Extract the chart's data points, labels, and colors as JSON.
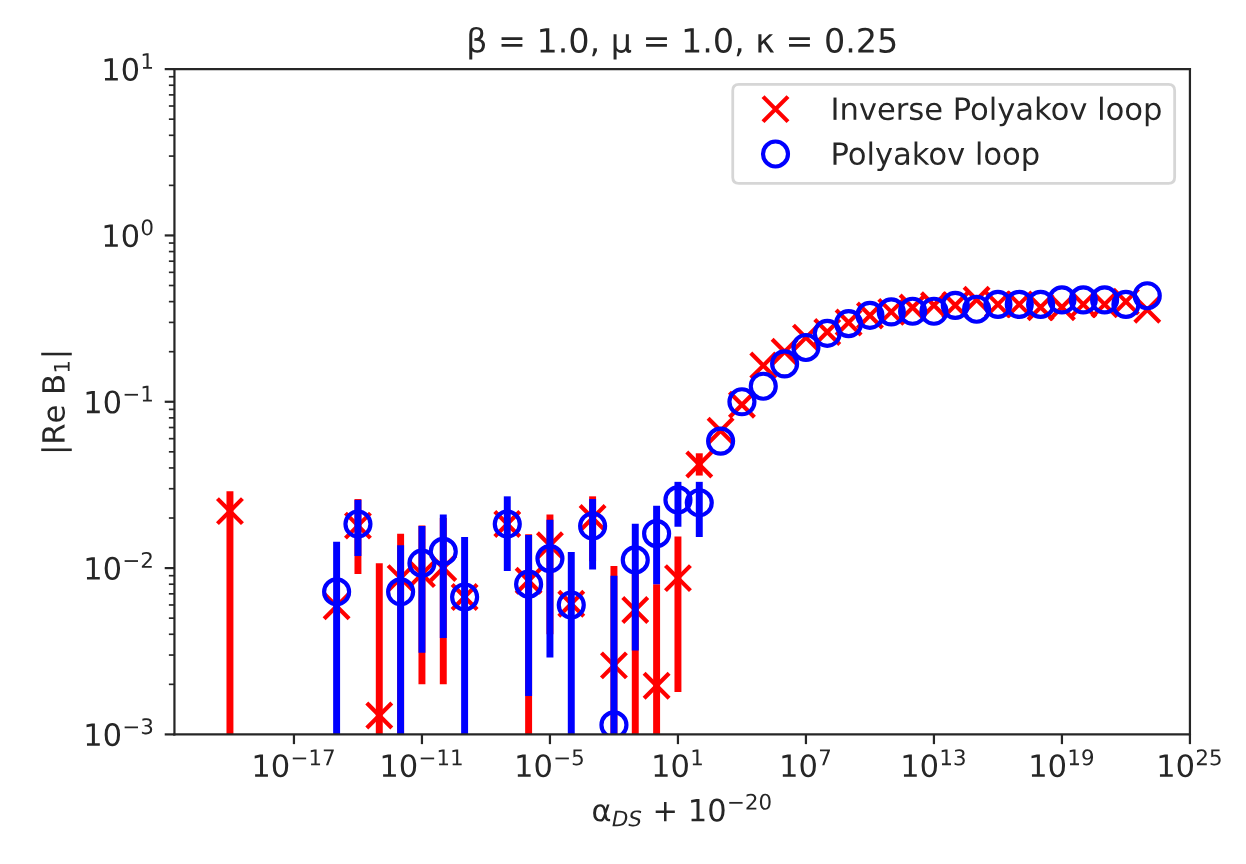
{
  "chart_data": {
    "type": "scatter",
    "title": "β = 1.0, μ = 1.0, κ = 0.25",
    "xlabel": "α$_{DS}$ + 10$^{−20}$",
    "ylabel": "|Re B$_{1}$|",
    "x": [
      1e-20,
      1e-15,
      1e-14,
      1e-13,
      1e-12,
      1e-11,
      1e-10,
      1e-09,
      1e-08,
      1e-07,
      1e-06,
      1e-05,
      0.0001,
      0.001,
      0.01,
      0.1,
      1,
      10,
      100,
      1000.0,
      10000.0,
      100000.0,
      1000000.0,
      10000000.0,
      100000000.0,
      1000000000.0,
      10000000000.0,
      100000000000.0,
      1000000000000.0,
      10000000000000.0,
      100000000000000.0,
      1000000000000000.0,
      1e+16,
      1e+17,
      1e+18,
      1e+19,
      1e+20,
      1e+21,
      1e+22,
      1e+23
    ],
    "series": [
      {
        "name": "Inverse Polyakov loop",
        "color": "#ff0000",
        "marker": "cross",
        "values": [
          0.022,
          0.0059,
          0.018,
          0.0013,
          0.0087,
          0.0092,
          0.01,
          0.0067,
          null,
          0.0184,
          0.0084,
          0.0137,
          0.0061,
          0.02,
          0.0026,
          0.0056,
          0.00196,
          0.0087,
          0.042,
          0.067,
          0.096,
          0.165,
          0.2,
          0.243,
          0.263,
          0.3,
          0.33,
          0.347,
          0.369,
          0.38,
          0.38,
          0.41,
          0.385,
          0.385,
          0.37,
          0.37,
          0.385,
          0.385,
          0.4,
          0.357
        ],
        "errors": [
          [
            0.001,
            0.029
          ],
          null,
          [
            0.0092,
            0.026
          ],
          [
            0.001,
            0.0107
          ],
          [
            0.001,
            0.0161
          ],
          [
            0.002,
            0.018
          ],
          [
            0.002,
            0.02
          ],
          null,
          null,
          null,
          [
            0.001,
            0.016
          ],
          [
            0.004,
            0.021
          ],
          null,
          [
            0.011,
            0.027
          ],
          [
            0.001,
            0.0103
          ],
          [
            0.001,
            0.0095
          ],
          [
            0.001,
            0.008
          ],
          [
            0.0018,
            0.0155
          ],
          [
            0.036,
            0.049
          ],
          null,
          null,
          null,
          null,
          null,
          null,
          null,
          null,
          null,
          null,
          null,
          null,
          null,
          null,
          null,
          null,
          null,
          null,
          null,
          null,
          null
        ]
      },
      {
        "name": "Polyakov loop",
        "color": "#0000ff",
        "marker": "circle",
        "values": [
          null,
          0.0072,
          0.0184,
          null,
          0.0072,
          0.0107,
          0.0126,
          0.0067,
          null,
          0.0184,
          0.008,
          0.0114,
          0.006,
          0.0179,
          0.00114,
          0.0112,
          0.0161,
          0.0257,
          0.0247,
          0.058,
          0.1,
          0.124,
          0.169,
          0.212,
          0.258,
          0.295,
          0.331,
          0.347,
          0.35,
          0.35,
          0.38,
          0.36,
          0.385,
          0.385,
          0.385,
          0.41,
          0.41,
          0.41,
          0.385,
          0.434
        ],
        "errors": [
          null,
          [
            0.001,
            0.0144
          ],
          [
            0.0118,
            0.0257
          ],
          null,
          [
            0.001,
            0.0137
          ],
          [
            0.0031,
            0.0179
          ],
          [
            0.0038,
            0.021
          ],
          [
            0.001,
            0.0154
          ],
          null,
          [
            0.0096,
            0.027
          ],
          [
            0.0017,
            0.0158
          ],
          [
            0.0029,
            0.0195
          ],
          [
            0.001,
            0.0125
          ],
          [
            0.0098,
            0.026
          ],
          [
            0.001,
            0.009
          ],
          [
            0.0032,
            0.0185
          ],
          [
            0.008,
            0.0237
          ],
          [
            0.0177,
            0.033
          ],
          [
            0.0154,
            0.033
          ],
          null,
          null,
          null,
          null,
          null,
          null,
          null,
          null,
          null,
          null,
          null,
          null,
          null,
          null,
          null,
          null,
          null,
          null,
          null,
          null,
          null
        ]
      }
    ],
    "log": "xy",
    "xlim": [
      2.5e-23,
      1e+25
    ],
    "ylim": [
      0.001,
      10
    ],
    "xticks": [
      {
        "value": 1e-17,
        "label": "10$^{−17}$"
      },
      {
        "value": 1e-11,
        "label": "10$^{−11}$"
      },
      {
        "value": 1e-05,
        "label": "10$^{−5}$"
      },
      {
        "value": 10,
        "label": "10$^{1}$"
      },
      {
        "value": 10000000.0,
        "label": "10$^{7}$"
      },
      {
        "value": 10000000000000.0,
        "label": "10$^{13}$"
      },
      {
        "value": 1e+19,
        "label": "10$^{19}$"
      },
      {
        "value": 1e+25,
        "label": "10$^{25}$"
      }
    ],
    "yticks": [
      {
        "value": 0.001,
        "label": "10$^{−3}$"
      },
      {
        "value": 0.01,
        "label": "10$^{−2}$"
      },
      {
        "value": 0.1,
        "label": "10$^{−1}$"
      },
      {
        "value": 1,
        "label": "10$^{0}$"
      },
      {
        "value": 10,
        "label": "10$^{1}$"
      }
    ],
    "grid": false,
    "legend": "top right"
  }
}
